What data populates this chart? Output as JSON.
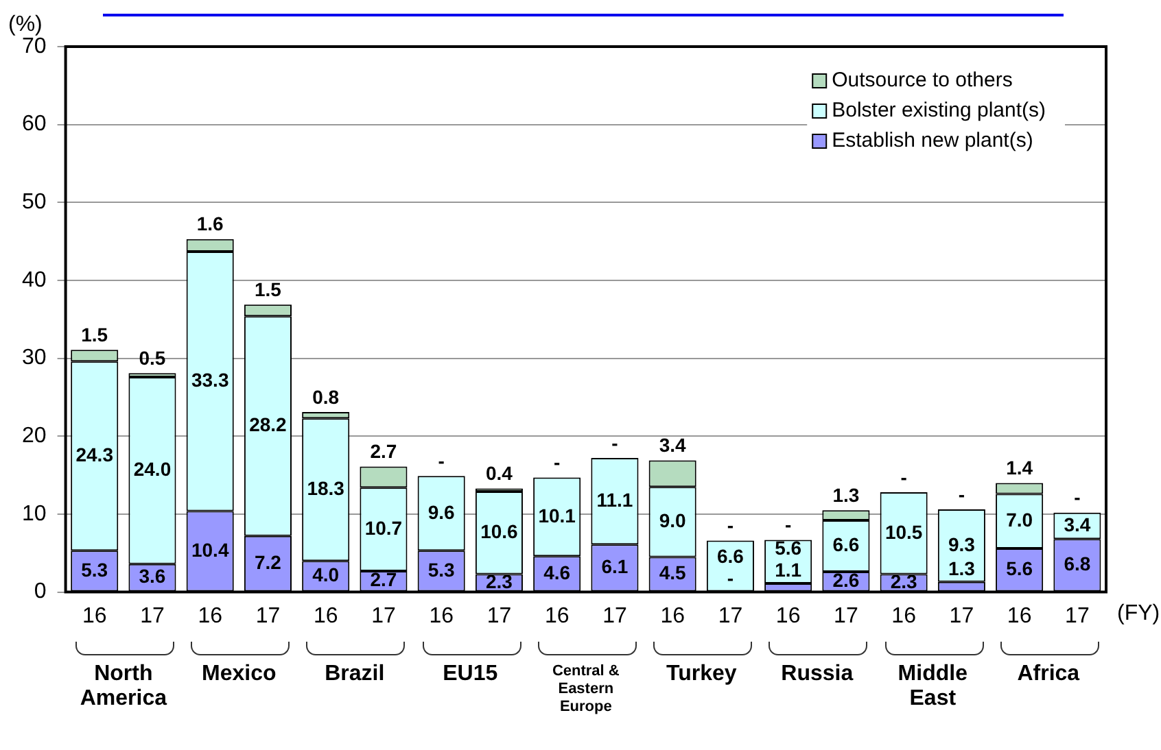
{
  "chart_data": {
    "type": "bar",
    "stacked": true,
    "ylabel": "(%)",
    "categories": [
      "16",
      "17",
      "16",
      "17",
      "16",
      "17",
      "16",
      "17",
      "16",
      "17",
      "16",
      "17",
      "16",
      "17",
      "16",
      "17",
      "16",
      "17"
    ],
    "series": [
      {
        "name": "Establish new plant(s)",
        "color": "#9999ff",
        "values": [
          5.3,
          3.6,
          10.4,
          7.2,
          4.0,
          2.7,
          5.3,
          2.3,
          4.6,
          6.1,
          4.5,
          0,
          1.1,
          2.6,
          2.3,
          1.3,
          5.6,
          6.8
        ],
        "value_labels": [
          "5.3",
          "3.6",
          "10.4",
          "7.2",
          "4.0",
          "2.7",
          "5.3",
          "2.3",
          "4.6",
          "6.1",
          "4.5",
          "-",
          "1.1",
          "2.6",
          "2.3",
          "1.3",
          "5.6",
          "6.8"
        ]
      },
      {
        "name": "Bolster existing plant(s)",
        "color": "#ccffff",
        "values": [
          24.3,
          24.0,
          33.3,
          28.2,
          18.3,
          10.7,
          9.6,
          10.6,
          10.1,
          11.1,
          9.0,
          6.6,
          5.6,
          6.6,
          10.5,
          9.3,
          7.0,
          3.4
        ],
        "value_labels": [
          "24.3",
          "24.0",
          "33.3",
          "28.2",
          "18.3",
          "10.7",
          "9.6",
          "10.6",
          "10.1",
          "11.1",
          "9.0",
          "6.6",
          "5.6",
          "6.6",
          "10.5",
          "9.3",
          "7.0",
          "3.4"
        ]
      },
      {
        "name": "Outsource to others",
        "color": "#b5dcbf",
        "values": [
          1.5,
          0.5,
          1.6,
          1.5,
          0.8,
          2.7,
          0,
          0.4,
          0,
          0,
          3.4,
          0,
          0,
          1.3,
          0,
          0,
          1.4,
          0
        ],
        "value_labels": [
          "1.5",
          "0.5",
          "1.6",
          "1.5",
          "0.8",
          "2.7",
          "-",
          "0.4",
          "-",
          "-",
          "3.4",
          "-",
          "-",
          "1.3",
          "-",
          "-",
          "1.4",
          "-"
        ]
      }
    ],
    "ylim": [
      0,
      70
    ],
    "yticks": [
      0,
      10,
      20,
      30,
      40,
      50,
      60,
      70
    ],
    "grid": "y",
    "legend": "top right",
    "annotations": [
      "North America",
      "Mexico",
      "Brazil",
      "EU15",
      "Central & Eastern Europe",
      "Turkey",
      "Russia",
      "Middle East",
      "Africa",
      "(FY)"
    ]
  }
}
